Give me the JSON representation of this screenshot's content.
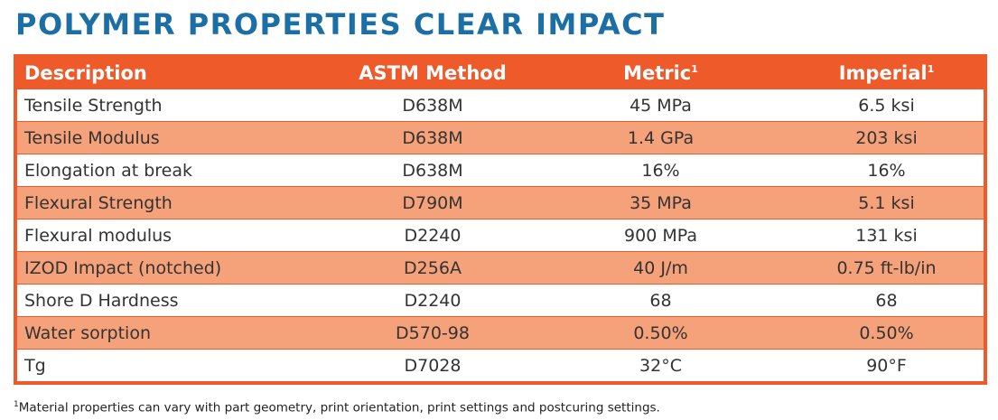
{
  "title": "POLYMER PROPERTIES CLEAR IMPACT",
  "colors": {
    "title": "#1c6fa5",
    "header": "#ee5a2a",
    "stripe": "#f5a17a"
  },
  "table": {
    "headers": {
      "description": "Description",
      "method": "ASTM Method",
      "metric": "Metric",
      "imperial": "Imperial",
      "note_marker": "1"
    },
    "rows": [
      {
        "description": "Tensile Strength",
        "method": "D638M",
        "metric": "45 MPa",
        "imperial": "6.5 ksi"
      },
      {
        "description": "Tensile Modulus",
        "method": "D638M",
        "metric": "1.4 GPa",
        "imperial": "203 ksi"
      },
      {
        "description": "Elongation at break",
        "method": "D638M",
        "metric": "16%",
        "imperial": "16%"
      },
      {
        "description": "Flexural Strength",
        "method": "D790M",
        "metric": "35 MPa",
        "imperial": "5.1 ksi"
      },
      {
        "description": "Flexural modulus",
        "method": "D2240",
        "metric": "900 MPa",
        "imperial": "131 ksi"
      },
      {
        "description": "IZOD Impact (notched)",
        "method": "D256A",
        "metric": "40 J/m",
        "imperial": "0.75 ft-lb/in"
      },
      {
        "description": "Shore D Hardness",
        "method": "D2240",
        "metric": "68",
        "imperial": "68"
      },
      {
        "description": "Water sorption",
        "method": "D570-98",
        "metric": "0.50%",
        "imperial": "0.50%"
      },
      {
        "description": "Tg",
        "method": "D7028",
        "metric": "32°C",
        "imperial": "90°F"
      }
    ]
  },
  "footnote": {
    "marker": "1",
    "text": "Material properties can vary with part geometry, print orientation, print settings and postcuring settings."
  }
}
